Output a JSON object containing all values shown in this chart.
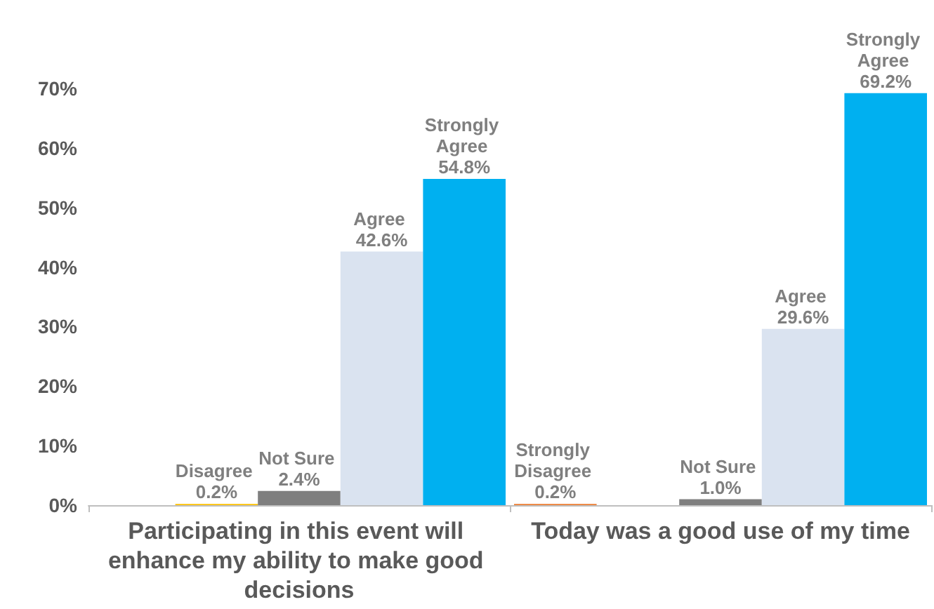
{
  "chart_data": {
    "type": "bar",
    "categories": [
      "Participating in this event will enhance my ability to make good decisions",
      "Today was a good use of my time"
    ],
    "series": [
      {
        "color": "#ed7d31",
        "values": [
          null,
          0.2
        ],
        "value_labels": [
          null,
          "Strongly Disagree 0.2%"
        ]
      },
      {
        "color": "#ffc000",
        "values": [
          0.2,
          null
        ],
        "value_labels": [
          "Disagree 0.2%",
          null
        ]
      },
      {
        "color": "#7f7f7f",
        "values": [
          2.4,
          1.0
        ],
        "value_labels": [
          "Not Sure 2.4%",
          "Not Sure 1.0%"
        ]
      },
      {
        "color": "#dae3f0",
        "values": [
          42.6,
          29.6
        ],
        "value_labels": [
          "Agree 42.6%",
          "Agree 29.6%"
        ]
      },
      {
        "color": "#00b0f0",
        "values": [
          54.8,
          69.2
        ],
        "value_labels": [
          "Strongly Agree 54.8%",
          "Strongly Agree 69.2%"
        ]
      }
    ],
    "ylim": [
      0,
      70
    ],
    "yticks": [
      {
        "value": 0,
        "label": "0%"
      },
      {
        "value": 10,
        "label": "10%"
      },
      {
        "value": 20,
        "label": "20%"
      },
      {
        "value": 30,
        "label": "30%"
      },
      {
        "value": 40,
        "label": "40%"
      },
      {
        "value": 50,
        "label": "50%"
      },
      {
        "value": 60,
        "label": "60%"
      },
      {
        "value": 70,
        "label": "70%"
      }
    ],
    "grid": false
  }
}
